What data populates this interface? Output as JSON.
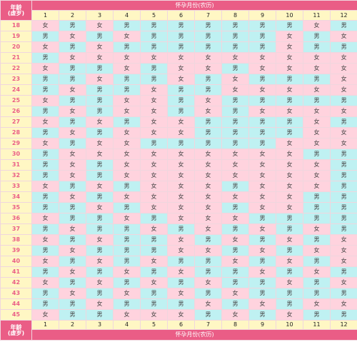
{
  "header": {
    "corner_label": "年龄\n(虚岁)",
    "title": "怀孕月份(农历)",
    "months": [
      "1",
      "2",
      "3",
      "4",
      "5",
      "6",
      "7",
      "8",
      "9",
      "10",
      "11",
      "12"
    ]
  },
  "footer": {
    "corner_label": "年龄\n(虚岁)",
    "title": "怀孕月份(农历)",
    "months": [
      "1",
      "2",
      "3",
      "4",
      "5",
      "6",
      "7",
      "8",
      "9",
      "10",
      "11",
      "12"
    ]
  },
  "labels": {
    "girl": "女",
    "boy": "男"
  },
  "colors": {
    "header_bg": "#ea5d86",
    "month_bg": "#fff7c4",
    "girl_bg": "#ffd3de",
    "boy_bg": "#bff1f2",
    "age_text": "#ea5d86"
  },
  "rows": [
    {
      "age": "18",
      "cells": [
        "女",
        "男",
        "女",
        "男",
        "男",
        "男",
        "男",
        "男",
        "男",
        "男",
        "女",
        "男"
      ]
    },
    {
      "age": "19",
      "cells": [
        "男",
        "女",
        "男",
        "女",
        "男",
        "男",
        "男",
        "男",
        "男",
        "女",
        "男",
        "女"
      ]
    },
    {
      "age": "20",
      "cells": [
        "女",
        "男",
        "女",
        "男",
        "男",
        "男",
        "男",
        "男",
        "男",
        "女",
        "男",
        "男"
      ]
    },
    {
      "age": "21",
      "cells": [
        "男",
        "女",
        "女",
        "女",
        "女",
        "女",
        "女",
        "女",
        "女",
        "女",
        "女",
        "女"
      ]
    },
    {
      "age": "22",
      "cells": [
        "女",
        "男",
        "男",
        "女",
        "男",
        "女",
        "女",
        "男",
        "女",
        "女",
        "女",
        "女"
      ]
    },
    {
      "age": "23",
      "cells": [
        "男",
        "男",
        "女",
        "男",
        "男",
        "女",
        "男",
        "女",
        "男",
        "男",
        "男",
        "女"
      ]
    },
    {
      "age": "24",
      "cells": [
        "男",
        "女",
        "男",
        "男",
        "女",
        "男",
        "男",
        "女",
        "女",
        "女",
        "女",
        "女"
      ]
    },
    {
      "age": "25",
      "cells": [
        "女",
        "男",
        "男",
        "女",
        "女",
        "男",
        "女",
        "男",
        "男",
        "男",
        "男",
        "男"
      ]
    },
    {
      "age": "26",
      "cells": [
        "男",
        "女",
        "男",
        "女",
        "女",
        "男",
        "女",
        "男",
        "女",
        "女",
        "女",
        "女"
      ]
    },
    {
      "age": "27",
      "cells": [
        "女",
        "男",
        "女",
        "男",
        "女",
        "女",
        "男",
        "男",
        "男",
        "男",
        "女",
        "男"
      ]
    },
    {
      "age": "28",
      "cells": [
        "男",
        "女",
        "男",
        "女",
        "女",
        "女",
        "男",
        "男",
        "男",
        "男",
        "女",
        "女"
      ]
    },
    {
      "age": "29",
      "cells": [
        "女",
        "男",
        "女",
        "女",
        "男",
        "男",
        "男",
        "男",
        "男",
        "女",
        "女",
        "女"
      ]
    },
    {
      "age": "30",
      "cells": [
        "男",
        "女",
        "女",
        "女",
        "女",
        "女",
        "女",
        "女",
        "女",
        "女",
        "男",
        "男"
      ]
    },
    {
      "age": "31",
      "cells": [
        "男",
        "女",
        "男",
        "女",
        "女",
        "女",
        "女",
        "女",
        "女",
        "女",
        "女",
        "男"
      ]
    },
    {
      "age": "32",
      "cells": [
        "男",
        "女",
        "男",
        "女",
        "女",
        "女",
        "女",
        "女",
        "女",
        "女",
        "女",
        "男"
      ]
    },
    {
      "age": "33",
      "cells": [
        "女",
        "男",
        "女",
        "男",
        "女",
        "女",
        "女",
        "男",
        "女",
        "女",
        "女",
        "男"
      ]
    },
    {
      "age": "34",
      "cells": [
        "男",
        "女",
        "男",
        "女",
        "女",
        "女",
        "女",
        "女",
        "女",
        "女",
        "男",
        "男"
      ]
    },
    {
      "age": "35",
      "cells": [
        "男",
        "男",
        "女",
        "男",
        "女",
        "女",
        "女",
        "男",
        "女",
        "女",
        "男",
        "男"
      ]
    },
    {
      "age": "36",
      "cells": [
        "女",
        "男",
        "男",
        "女",
        "男",
        "女",
        "女",
        "女",
        "男",
        "男",
        "男",
        "男"
      ]
    },
    {
      "age": "37",
      "cells": [
        "男",
        "女",
        "男",
        "男",
        "女",
        "男",
        "女",
        "男",
        "女",
        "男",
        "女",
        "男"
      ]
    },
    {
      "age": "38",
      "cells": [
        "女",
        "男",
        "女",
        "男",
        "男",
        "女",
        "男",
        "女",
        "男",
        "女",
        "男",
        "女"
      ]
    },
    {
      "age": "39",
      "cells": [
        "男",
        "女",
        "男",
        "男",
        "男",
        "女",
        "女",
        "男",
        "女",
        "男",
        "女",
        "女"
      ]
    },
    {
      "age": "40",
      "cells": [
        "女",
        "男",
        "女",
        "男",
        "女",
        "男",
        "男",
        "女",
        "男",
        "女",
        "男",
        "女"
      ]
    },
    {
      "age": "41",
      "cells": [
        "男",
        "女",
        "男",
        "女",
        "男",
        "女",
        "男",
        "男",
        "女",
        "男",
        "女",
        "男"
      ]
    },
    {
      "age": "42",
      "cells": [
        "女",
        "男",
        "女",
        "男",
        "女",
        "男",
        "女",
        "男",
        "男",
        "女",
        "男",
        "女"
      ]
    },
    {
      "age": "43",
      "cells": [
        "男",
        "女",
        "男",
        "女",
        "男",
        "女",
        "男",
        "女",
        "男",
        "男",
        "男",
        "男"
      ]
    },
    {
      "age": "44",
      "cells": [
        "男",
        "男",
        "女",
        "男",
        "男",
        "男",
        "女",
        "男",
        "女",
        "男",
        "女",
        "女"
      ]
    },
    {
      "age": "45",
      "cells": [
        "女",
        "男",
        "男",
        "女",
        "女",
        "女",
        "男",
        "女",
        "男",
        "女",
        "男",
        "男"
      ]
    }
  ]
}
